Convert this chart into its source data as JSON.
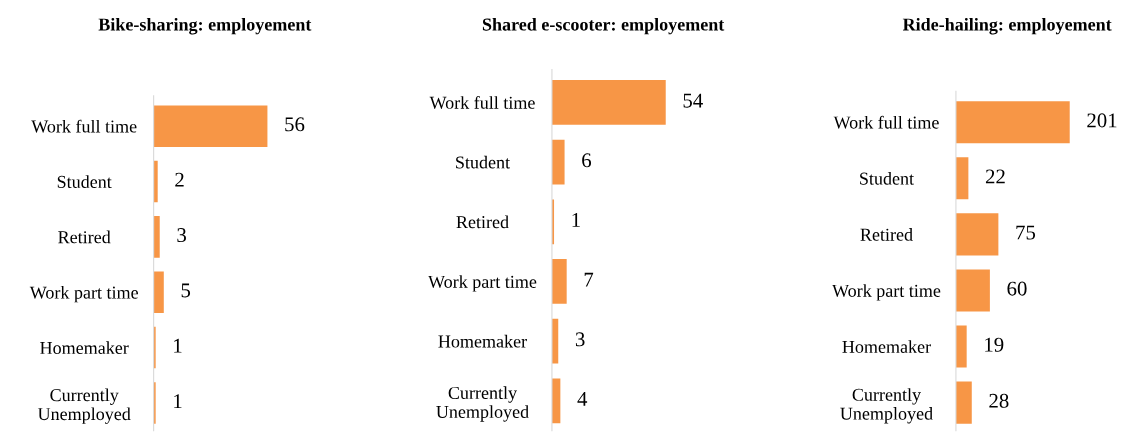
{
  "chart_data": [
    {
      "type": "bar",
      "orientation": "horizontal",
      "title": "Bike-sharing: employement",
      "categories": [
        "Work full time",
        "Student",
        "Retired",
        "Work part time",
        "Homemaker",
        "Currently\nUnemployed"
      ],
      "values": [
        56,
        2,
        3,
        5,
        1,
        1
      ],
      "color": "#f79646",
      "data_labels": true,
      "tick_labels": "y",
      "grid": false,
      "legend": false
    },
    {
      "type": "bar",
      "orientation": "horizontal",
      "title": "Shared e-scooter: employement",
      "categories": [
        "Work full time",
        "Student",
        "Retired",
        "Work part time",
        "Homemaker",
        "Currently\nUnemployed"
      ],
      "values": [
        54,
        6,
        1,
        7,
        3,
        4
      ],
      "color": "#f79646",
      "data_labels": true,
      "tick_labels": "y",
      "grid": false,
      "legend": false
    },
    {
      "type": "bar",
      "orientation": "horizontal",
      "title": "Ride-hailing: employement",
      "categories": [
        "Work full time",
        "Student",
        "Retired",
        "Work part time",
        "Homemaker",
        "Currently\nUnemployed"
      ],
      "values": [
        201,
        22,
        75,
        60,
        19,
        28
      ],
      "color": "#f79646",
      "data_labels": true,
      "tick_labels": "y",
      "grid": false,
      "legend": false
    }
  ]
}
